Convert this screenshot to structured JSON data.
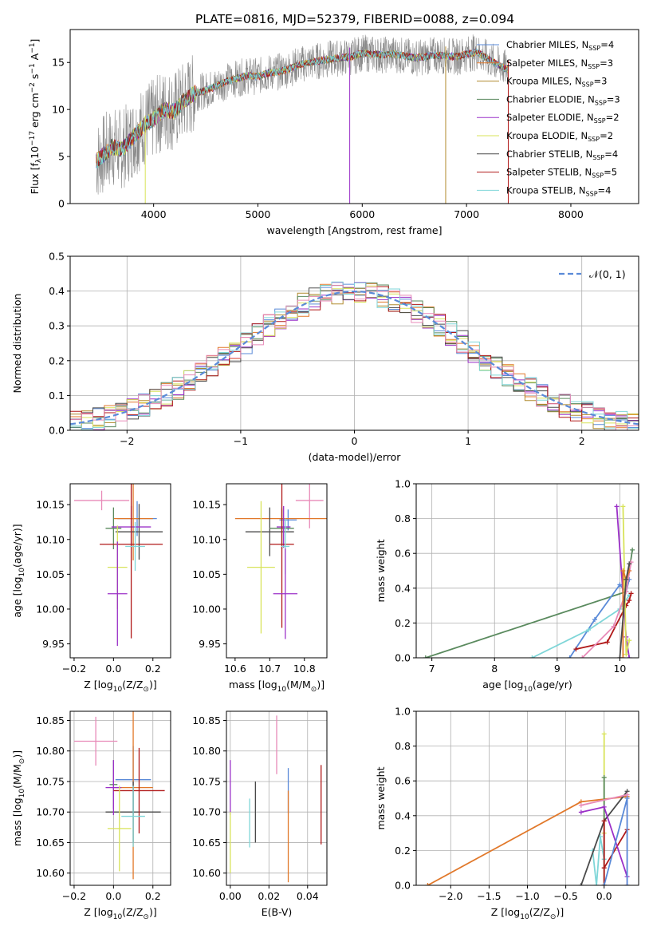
{
  "figure": {
    "title": "PLATE=0816, MJD=52379, FIBERID=0088, z=0.094"
  },
  "series_legend": [
    {
      "name": "Chabrier MILES, N_SSP=4",
      "label": "Chabrier MILES, N",
      "sub": "SSP",
      "tail": "=4",
      "color": "#5a8ad8"
    },
    {
      "name": "Salpeter MILES, N_SSP=3",
      "label": "Salpeter MILES, N",
      "sub": "SSP",
      "tail": "=3",
      "color": "#e1782a"
    },
    {
      "name": "Kroupa MILES, N_SSP=3",
      "label": "Kroupa MILES, N",
      "sub": "SSP",
      "tail": "=3",
      "color": "#b08a2e"
    },
    {
      "name": "Chabrier ELODIE, N_SSP=3",
      "label": "Chabrier ELODIE, N",
      "sub": "SSP",
      "tail": "=3",
      "color": "#5a8a5e"
    },
    {
      "name": "Salpeter ELODIE, N_SSP=2",
      "label": "Salpeter ELODIE, N",
      "sub": "SSP",
      "tail": "=2",
      "color": "#9b30c8"
    },
    {
      "name": "Kroupa ELODIE, N_SSP=2",
      "label": "Kroupa ELODIE, N",
      "sub": "SSP",
      "tail": "=2",
      "color": "#d8e35a"
    },
    {
      "name": "Chabrier STELIB, N_SSP=4",
      "label": "Chabrier STELIB, N",
      "sub": "SSP",
      "tail": "=4",
      "color": "#4a4a4a"
    },
    {
      "name": "Salpeter STELIB, N_SSP=5",
      "label": "Salpeter STELIB, N",
      "sub": "SSP",
      "tail": "=5",
      "color": "#b01818"
    },
    {
      "name": "Kroupa STELIB, N_SSP=4",
      "label": "Kroupa STELIB, N",
      "sub": "SSP",
      "tail": "=4",
      "color": "#7fd6d8"
    }
  ],
  "extra_colors": {
    "pink": "#e88ab8",
    "data_gray": "#8a8a8a",
    "grid": "#b0b0b0"
  },
  "chart_data": [
    {
      "id": "spectrum",
      "type": "line",
      "xlabel": "wavelength [Angstrom, rest frame]",
      "ylabel": "Flux [f",
      "xlim": [
        3200,
        8650
      ],
      "ylim": [
        0,
        18.5
      ],
      "xticks": [
        4000,
        5000,
        6000,
        7000,
        8000
      ],
      "yticks": [
        0,
        5,
        10,
        15
      ],
      "grid": false,
      "legend_position": "upper right",
      "data_profile": {
        "x": [
          3450,
          3500,
          3600,
          3700,
          3800,
          3900,
          4000,
          4100,
          4200,
          4300,
          4400,
          4500,
          4600,
          4700,
          4800,
          4900,
          5000,
          5100,
          5200,
          5300,
          5400,
          5500,
          5600,
          5700,
          5800,
          5900,
          6000,
          6100,
          6200,
          6300,
          6400,
          6500,
          6600,
          6700,
          6800,
          6900,
          7000,
          7100,
          7200,
          7300,
          7400
        ],
        "y": [
          4.5,
          5.0,
          6.0,
          5.8,
          7.0,
          8.2,
          9.0,
          10.0,
          9.8,
          11.0,
          11.8,
          12.0,
          12.5,
          13.0,
          13.3,
          13.6,
          13.5,
          13.9,
          14.0,
          14.3,
          14.8,
          15.0,
          15.2,
          15.4,
          15.5,
          15.6,
          16.0,
          15.9,
          15.8,
          15.9,
          15.7,
          15.5,
          15.6,
          15.8,
          15.7,
          15.6,
          15.9,
          16.1,
          15.4,
          14.8,
          14.2
        ]
      },
      "spikes": [
        {
          "x": 3920,
          "y_low": 0,
          "color_index": 5
        },
        {
          "x": 5880,
          "y_low": 0,
          "color_index": 4
        },
        {
          "x": 6800,
          "y_low": 0,
          "color_index": 2
        },
        {
          "x": 7400,
          "y_low": 0,
          "color_index": 7
        }
      ]
    },
    {
      "id": "residual_hist",
      "type": "histogram",
      "xlabel": "(data-model)/error",
      "ylabel": "Normed distribution",
      "xlim": [
        -2.5,
        2.5
      ],
      "ylim": [
        0,
        0.5
      ],
      "xticks": [
        -2,
        -1,
        0,
        1,
        2
      ],
      "yticks": [
        0.0,
        0.1,
        0.2,
        0.3,
        0.4,
        0.5
      ],
      "grid": true,
      "bin_width": 0.1,
      "bin_start": -2.5,
      "legend": [
        {
          "name": "N(0, 1)",
          "label": "𝒩(0, 1)",
          "style": "dashed",
          "color": "#5a8ad8"
        }
      ]
    },
    {
      "id": "age_vs_Z",
      "type": "errorbar",
      "xlabel": "Z [log",
      "ylabel": "age  [log",
      "xlim": [
        -0.22,
        0.29
      ],
      "ylim": [
        9.93,
        10.18
      ],
      "xticks": [
        -0.2,
        0.0,
        0.2
      ],
      "yticks": [
        9.95,
        10.0,
        10.05,
        10.1,
        10.15
      ],
      "grid": false,
      "points": [
        {
          "x": -0.06,
          "xerr": 0.14,
          "y": 10.156,
          "yerr": 0.014,
          "c": "pink"
        },
        {
          "x": 0.12,
          "xerr": 0.1,
          "y": 10.13,
          "yerr": 0.025,
          "c": 0
        },
        {
          "x": 0.1,
          "xerr": 0.1,
          "y": 10.13,
          "yerr": 0.06,
          "c": 1
        },
        {
          "x": 0.13,
          "xerr": 0.12,
          "y": 10.111,
          "yerr": 0.04,
          "c": 6
        },
        {
          "x": 0.0,
          "xerr": 0.04,
          "y": 10.116,
          "yerr": 0.03,
          "c": 3
        },
        {
          "x": 0.09,
          "xerr": 0.1,
          "y": 10.118,
          "yerr": 0.03,
          "c": 4
        },
        {
          "x": 0.09,
          "xerr": 0.16,
          "y": 10.093,
          "yerr": 0.135,
          "c": 7
        },
        {
          "x": 0.11,
          "xerr": 0.05,
          "y": 10.09,
          "yerr": 0.035,
          "c": 8
        },
        {
          "x": 0.02,
          "xerr": 0.05,
          "y": 10.06,
          "yerr": 0.06,
          "c": 5
        },
        {
          "x": 0.02,
          "xerr": 0.05,
          "y": 10.022,
          "yerr": 0.075,
          "c": 4
        }
      ]
    },
    {
      "id": "age_vs_mass",
      "type": "errorbar",
      "xlabel": "mass [log",
      "ylabel": "",
      "xlim": [
        10.575,
        10.865
      ],
      "ylim": [
        9.93,
        10.18
      ],
      "xticks": [
        10.6,
        10.7,
        10.8
      ],
      "yticks": [
        9.95,
        10.0,
        10.05,
        10.1,
        10.15
      ],
      "grid": false,
      "points": [
        {
          "x": 10.815,
          "xerr": 0.04,
          "y": 10.156,
          "yerr": 0.04,
          "c": "pink"
        },
        {
          "x": 10.753,
          "xerr": 0.025,
          "y": 10.128,
          "yerr": 0.015,
          "c": 0
        },
        {
          "x": 10.735,
          "xerr": 0.135,
          "y": 10.13,
          "yerr": 0.013,
          "c": 1
        },
        {
          "x": 10.7,
          "xerr": 0.07,
          "y": 10.111,
          "yerr": 0.035,
          "c": 6
        },
        {
          "x": 10.735,
          "xerr": 0.035,
          "y": 10.116,
          "yerr": 0.03,
          "c": 3
        },
        {
          "x": 10.74,
          "xerr": 0.02,
          "y": 10.118,
          "yerr": 0.03,
          "c": 4
        },
        {
          "x": 10.735,
          "xerr": 0.035,
          "y": 10.093,
          "yerr": 0.12,
          "c": 7
        },
        {
          "x": 10.745,
          "xerr": 0.012,
          "y": 10.09,
          "yerr": 0.04,
          "c": 8
        },
        {
          "x": 10.675,
          "xerr": 0.04,
          "y": 10.06,
          "yerr": 0.095,
          "c": 5
        },
        {
          "x": 10.745,
          "xerr": 0.035,
          "y": 10.022,
          "yerr": 0.065,
          "c": 4
        }
      ]
    },
    {
      "id": "weight_vs_age",
      "type": "line",
      "xlabel": "age  [log",
      "ylabel": "mass weight",
      "xlim": [
        6.75,
        10.3
      ],
      "ylim": [
        0,
        1.0
      ],
      "xticks": [
        7,
        8,
        9,
        10
      ],
      "yticks": [
        0.0,
        0.2,
        0.4,
        0.6,
        0.8,
        1.0
      ],
      "grid": true,
      "series": [
        {
          "c": 3,
          "x": [
            6.9,
            10.1,
            10.2
          ],
          "y": [
            0.0,
            0.38,
            0.62
          ]
        },
        {
          "c": 0,
          "x": [
            9.2,
            9.6,
            10.0,
            10.1,
            10.15
          ],
          "y": [
            0.0,
            0.22,
            0.42,
            0.38,
            0.45
          ]
        },
        {
          "c": 8,
          "x": [
            8.6,
            9.5,
            10.0,
            10.15
          ],
          "y": [
            0.0,
            0.16,
            0.28,
            0.36
          ]
        },
        {
          "c": 7,
          "x": [
            9.3,
            9.8,
            10.1,
            10.15,
            10.18
          ],
          "y": [
            0.05,
            0.09,
            0.3,
            0.33,
            0.37
          ]
        },
        {
          "c": "pink",
          "x": [
            9.4,
            9.9,
            10.1,
            10.18
          ],
          "y": [
            0.0,
            0.18,
            0.38,
            0.55
          ]
        },
        {
          "c": 4,
          "x": [
            9.95,
            10.1,
            10.15
          ],
          "y": [
            0.87,
            0.12,
            0.0
          ]
        },
        {
          "c": 5,
          "x": [
            10.05,
            10.1,
            10.15
          ],
          "y": [
            0.87,
            0.02,
            0.1
          ]
        },
        {
          "c": 1,
          "x": [
            10.05,
            10.05,
            10.1,
            10.15
          ],
          "y": [
            0.0,
            0.5,
            0.45,
            0.5
          ]
        },
        {
          "c": 6,
          "x": [
            10.0,
            10.1,
            10.15
          ],
          "y": [
            0.0,
            0.45,
            0.54
          ]
        }
      ]
    },
    {
      "id": "mass_vs_Z",
      "type": "errorbar",
      "xlabel": "Z [log",
      "ylabel": "mass [log",
      "xlim": [
        -0.22,
        0.29
      ],
      "ylim": [
        10.58,
        10.865
      ],
      "xticks": [
        -0.2,
        0.0,
        0.2
      ],
      "yticks": [
        10.6,
        10.65,
        10.7,
        10.75,
        10.8,
        10.85
      ],
      "grid": true,
      "points": [
        {
          "x": -0.09,
          "xerr": 0.11,
          "y": 10.816,
          "yerr": 0.04,
          "c": "pink"
        },
        {
          "x": 0.1,
          "xerr": 0.09,
          "y": 10.753,
          "yerr": 0.055,
          "c": 0
        },
        {
          "x": 0.1,
          "xerr": 0.1,
          "y": 10.74,
          "yerr": 0.15,
          "c": 1
        },
        {
          "x": 0.1,
          "xerr": 0.14,
          "y": 10.7,
          "yerr": 0.05,
          "c": 6
        },
        {
          "x": 0.0,
          "xerr": 0.02,
          "y": 10.745,
          "yerr": 0.04,
          "c": 3
        },
        {
          "x": 0.0,
          "xerr": 0.04,
          "y": 10.74,
          "yerr": 0.045,
          "c": 4
        },
        {
          "x": 0.13,
          "xerr": 0.13,
          "y": 10.735,
          "yerr": 0.07,
          "c": 7
        },
        {
          "x": 0.1,
          "xerr": 0.06,
          "y": 10.693,
          "yerr": 0.05,
          "c": 8
        },
        {
          "x": 0.03,
          "xerr": 0.06,
          "y": 10.673,
          "yerr": 0.07,
          "c": 5
        }
      ]
    },
    {
      "id": "mass_vs_EBV",
      "type": "errorbar",
      "xlabel": "E(B-V)",
      "ylabel": "",
      "xlim": [
        -0.002,
        0.05
      ],
      "ylim": [
        10.58,
        10.865
      ],
      "xticks": [
        0.0,
        0.02,
        0.04
      ],
      "yticks": [
        10.6,
        10.65,
        10.7,
        10.75,
        10.8,
        10.85
      ],
      "grid": true,
      "points": [
        {
          "x": 0.024,
          "xerr": 0,
          "y": 10.81,
          "yerr": 0.048,
          "c": "pink"
        },
        {
          "x": 0.03,
          "xerr": 0,
          "y": 10.735,
          "yerr": 0.037,
          "c": 0
        },
        {
          "x": 0.03,
          "xerr": 0,
          "y": 10.66,
          "yerr": 0.075,
          "c": 1
        },
        {
          "x": 0.013,
          "xerr": 0,
          "y": 10.7,
          "yerr": 0.05,
          "c": 6
        },
        {
          "x": 0.0,
          "xerr": 0,
          "y": 10.74,
          "yerr": 0.045,
          "c": 4
        },
        {
          "x": 0.047,
          "xerr": 0,
          "y": 10.712,
          "yerr": 0.065,
          "c": 7
        },
        {
          "x": 0.01,
          "xerr": 0,
          "y": 10.682,
          "yerr": 0.04,
          "c": 8
        },
        {
          "x": 0.0,
          "xerr": 0,
          "y": 10.65,
          "yerr": 0.05,
          "c": 5
        }
      ]
    },
    {
      "id": "weight_vs_Z",
      "type": "line",
      "xlabel": "Z [log",
      "ylabel": "mass weight",
      "xlim": [
        -2.45,
        0.45
      ],
      "ylim": [
        0,
        1.0
      ],
      "xticks": [
        -2.0,
        -1.5,
        -1.0,
        -0.5,
        0.0
      ],
      "yticks": [
        0.0,
        0.2,
        0.4,
        0.6,
        0.8,
        1.0
      ],
      "grid": true,
      "series": [
        {
          "c": 1,
          "x": [
            -2.3,
            -0.3,
            0.3
          ],
          "y": [
            0.0,
            0.48,
            0.51
          ]
        },
        {
          "c": 5,
          "x": [
            0.0,
            0.0,
            0.0
          ],
          "y": [
            0.87,
            0.62,
            0.3
          ]
        },
        {
          "c": 3,
          "x": [
            0.0,
            0.0
          ],
          "y": [
            0.62,
            0.0
          ]
        },
        {
          "c": 8,
          "x": [
            -0.15,
            -0.1,
            -0.05,
            0.0
          ],
          "y": [
            0.2,
            0.0,
            0.28,
            0.15
          ]
        },
        {
          "c": 6,
          "x": [
            -0.3,
            0.0,
            0.3
          ],
          "y": [
            0.0,
            0.37,
            0.54
          ]
        },
        {
          "c": 7,
          "x": [
            0.0,
            0.0,
            0.0,
            0.3
          ],
          "y": [
            0.37,
            0.0,
            0.1,
            0.32
          ]
        },
        {
          "c": "pink",
          "x": [
            -0.3,
            0.3,
            0.3
          ],
          "y": [
            0.46,
            0.52,
            0.0
          ]
        },
        {
          "c": 4,
          "x": [
            -0.3,
            0.0,
            0.3
          ],
          "y": [
            0.42,
            0.45,
            0.05
          ]
        },
        {
          "c": 0,
          "x": [
            0.0,
            0.3,
            0.3
          ],
          "y": [
            0.0,
            0.5,
            0.0
          ]
        }
      ]
    }
  ]
}
